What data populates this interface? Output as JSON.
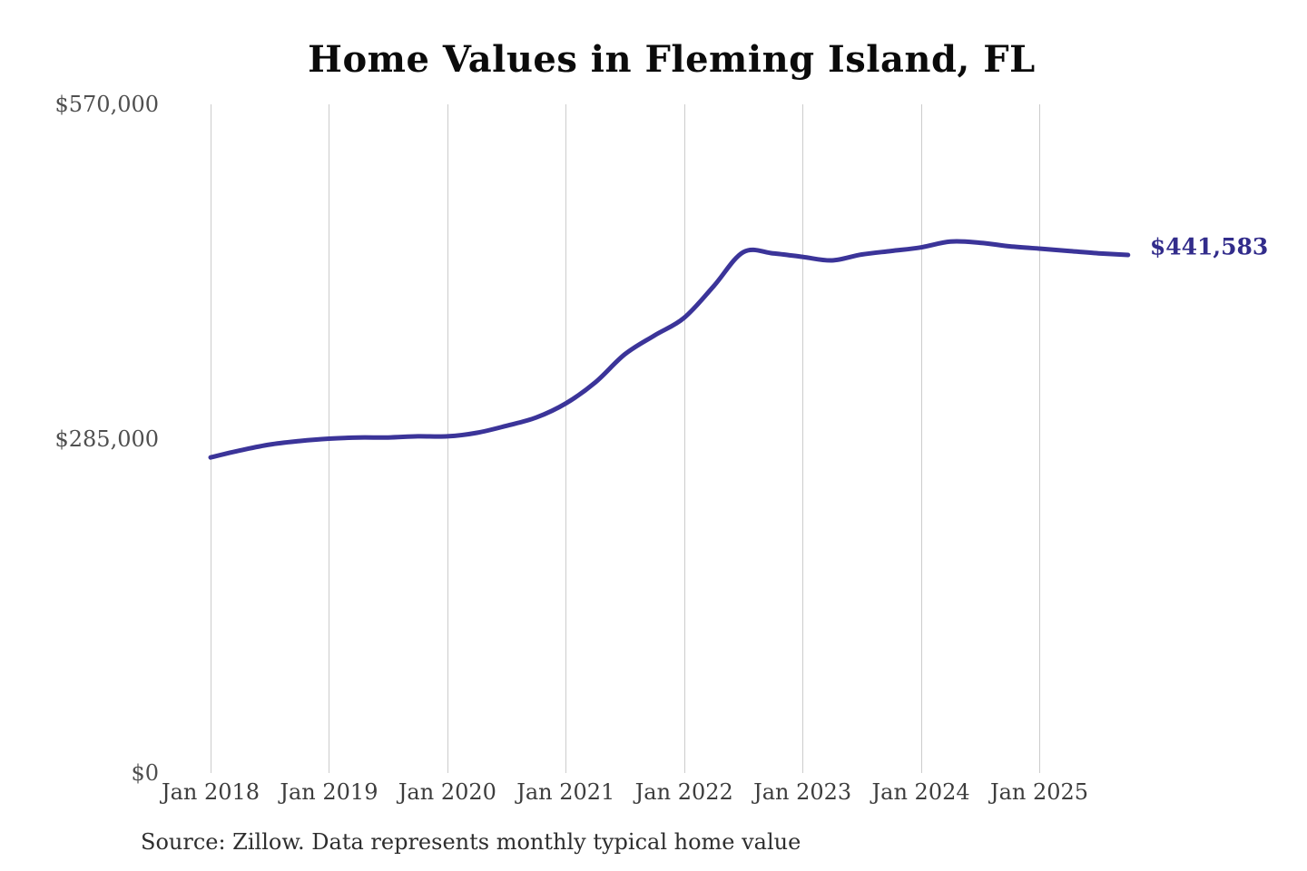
{
  "title": "Home Values in Fleming Island, FL",
  "source_note": "Source: Zillow. Data represents monthly typical home value",
  "end_label": "$441,583",
  "colors": {
    "line": "#3b3499",
    "end_label": "#322c8b",
    "grid": "#cccccc",
    "title_text": "#0b0b0b",
    "y_tick_text": "#4f4f4f",
    "x_tick_text": "#3d3d3d",
    "source_text": "#2e2e2e",
    "background": "#ffffff"
  },
  "chart_data": {
    "type": "line",
    "title": "Home Values in Fleming Island, FL",
    "xlabel": "",
    "ylabel": "",
    "ylim": [
      0,
      570000
    ],
    "grid": "vertical-only",
    "legend": "none",
    "y_ticks": [
      {
        "value": 0,
        "label": "$0"
      },
      {
        "value": 285000,
        "label": "$285,000"
      },
      {
        "value": 570000,
        "label": "$570,000"
      }
    ],
    "x_ticks": [
      {
        "month": "2018-01",
        "label": "Jan 2018"
      },
      {
        "month": "2019-01",
        "label": "Jan 2019"
      },
      {
        "month": "2020-01",
        "label": "Jan 2020"
      },
      {
        "month": "2021-01",
        "label": "Jan 2021"
      },
      {
        "month": "2022-01",
        "label": "Jan 2022"
      },
      {
        "month": "2023-01",
        "label": "Jan 2023"
      },
      {
        "month": "2024-01",
        "label": "Jan 2024"
      },
      {
        "month": "2025-01",
        "label": "Jan 2025"
      }
    ],
    "annotation": {
      "text": "$441,583",
      "at": "2025-10"
    },
    "final_value": 441583,
    "series": [
      {
        "name": "Monthly typical home value",
        "points": [
          [
            "2018-01",
            269000
          ],
          [
            "2018-04",
            275000
          ],
          [
            "2018-07",
            280000
          ],
          [
            "2018-10",
            283000
          ],
          [
            "2019-01",
            285000
          ],
          [
            "2019-04",
            286000
          ],
          [
            "2019-07",
            286000
          ],
          [
            "2019-10",
            287000
          ],
          [
            "2020-01",
            287000
          ],
          [
            "2020-04",
            290000
          ],
          [
            "2020-07",
            296000
          ],
          [
            "2020-10",
            303000
          ],
          [
            "2021-01",
            315000
          ],
          [
            "2021-04",
            333000
          ],
          [
            "2021-07",
            357000
          ],
          [
            "2021-10",
            373000
          ],
          [
            "2022-01",
            388000
          ],
          [
            "2022-04",
            415000
          ],
          [
            "2022-07",
            444000
          ],
          [
            "2022-10",
            443000
          ],
          [
            "2023-01",
            440000
          ],
          [
            "2023-04",
            437000
          ],
          [
            "2023-07",
            442000
          ],
          [
            "2023-10",
            445000
          ],
          [
            "2024-01",
            448000
          ],
          [
            "2024-04",
            453000
          ],
          [
            "2024-07",
            452000
          ],
          [
            "2024-10",
            449000
          ],
          [
            "2025-01",
            447000
          ],
          [
            "2025-04",
            445000
          ],
          [
            "2025-07",
            443000
          ],
          [
            "2025-10",
            441583
          ]
        ]
      }
    ]
  }
}
